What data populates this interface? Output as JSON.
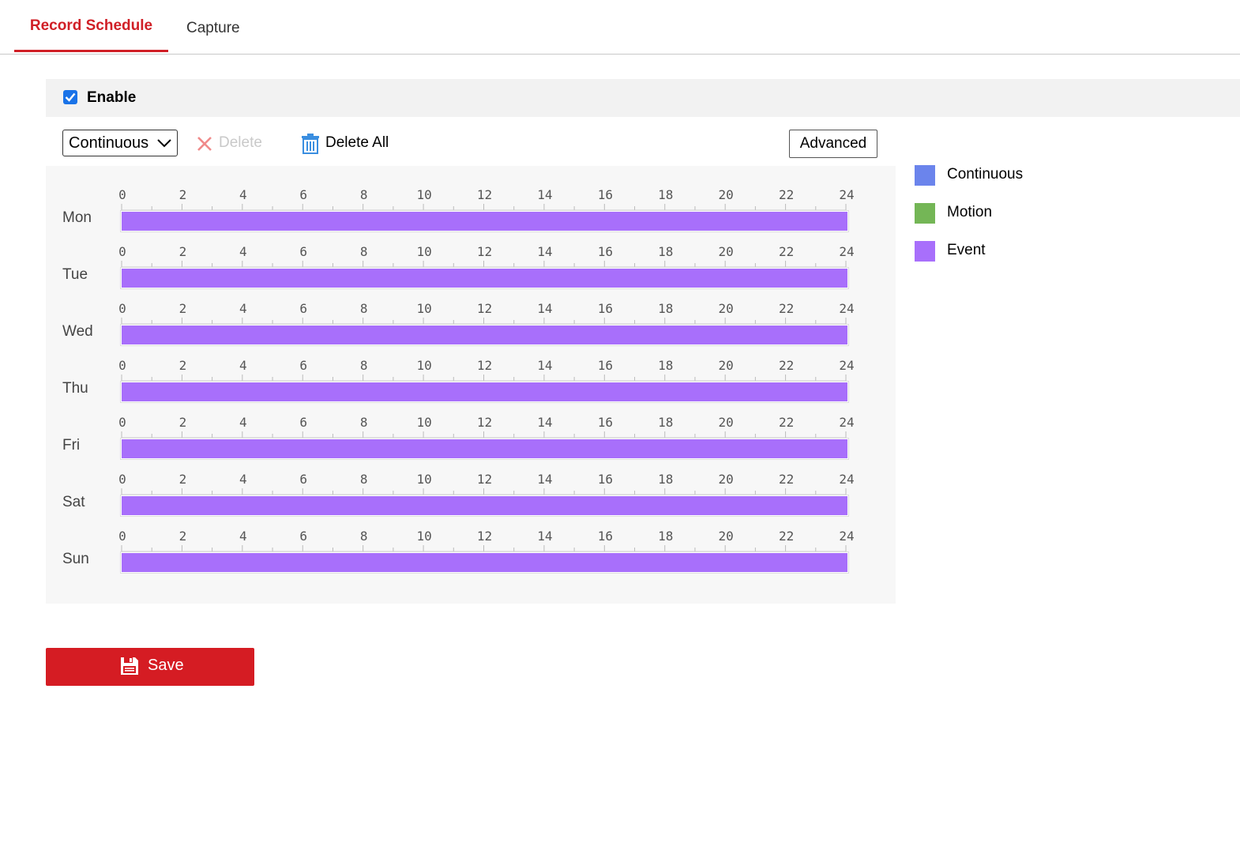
{
  "tabs": [
    {
      "label": "Record Schedule",
      "active": true
    },
    {
      "label": "Capture",
      "active": false
    }
  ],
  "enable": {
    "label": "Enable",
    "checked": true
  },
  "toolbar": {
    "mode_select": {
      "value": "Continuous"
    },
    "delete_label": "Delete",
    "delete_all_label": "Delete All",
    "advanced_label": "Advanced"
  },
  "schedule": {
    "tick_labels": [
      "0",
      "2",
      "4",
      "6",
      "8",
      "10",
      "12",
      "14",
      "16",
      "18",
      "20",
      "22",
      "24"
    ],
    "days": [
      {
        "label": "Mon",
        "segments": [
          {
            "start": 0,
            "end": 24,
            "type": "Event"
          }
        ]
      },
      {
        "label": "Tue",
        "segments": [
          {
            "start": 0,
            "end": 24,
            "type": "Event"
          }
        ]
      },
      {
        "label": "Wed",
        "segments": [
          {
            "start": 0,
            "end": 24,
            "type": "Event"
          }
        ]
      },
      {
        "label": "Thu",
        "segments": [
          {
            "start": 0,
            "end": 24,
            "type": "Event"
          }
        ]
      },
      {
        "label": "Fri",
        "segments": [
          {
            "start": 0,
            "end": 24,
            "type": "Event"
          }
        ]
      },
      {
        "label": "Sat",
        "segments": [
          {
            "start": 0,
            "end": 24,
            "type": "Event"
          }
        ]
      },
      {
        "label": "Sun",
        "segments": [
          {
            "start": 0,
            "end": 24,
            "type": "Event"
          }
        ]
      }
    ]
  },
  "legend": [
    {
      "label": "Continuous",
      "color": "#6b84ec"
    },
    {
      "label": "Motion",
      "color": "#74b656"
    },
    {
      "label": "Event",
      "color": "#a86ffb"
    }
  ],
  "save": {
    "label": "Save"
  },
  "colors": {
    "accent": "#d01f26",
    "save_bg": "#d51c23",
    "checkbox": "#1a73e8"
  },
  "icons": {
    "delete": "close-x-icon",
    "delete_all": "trash-icon",
    "save": "floppy-disk-icon",
    "select": "chevron-down-icon",
    "checkbox": "checkmark-icon"
  }
}
